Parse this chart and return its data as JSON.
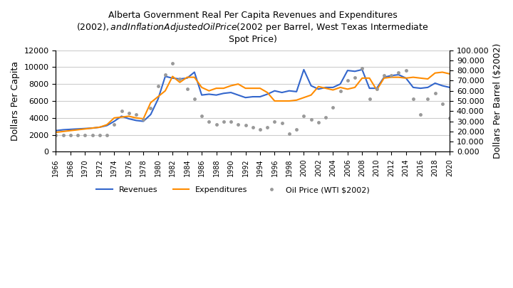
{
  "title": "Alberta Government Real Per Capita Revenues and Expenditures\n($2002), and Inflation Adjusted Oil Price ($2002 per Barrel, West Texas Intermediate\nSpot Price)",
  "ylabel_left": "Dollars Per Capita",
  "ylabel_right": "Dollars Per Barrel ($2002)",
  "years": [
    1966,
    1967,
    1968,
    1969,
    1970,
    1971,
    1972,
    1973,
    1974,
    1975,
    1976,
    1977,
    1978,
    1979,
    1980,
    1981,
    1982,
    1983,
    1984,
    1985,
    1986,
    1987,
    1988,
    1989,
    1990,
    1991,
    1992,
    1993,
    1994,
    1995,
    1996,
    1997,
    1998,
    1999,
    2000,
    2001,
    2002,
    2003,
    2004,
    2005,
    2006,
    2007,
    2008,
    2009,
    2010,
    2011,
    2012,
    2013,
    2014,
    2015,
    2016,
    2017,
    2018,
    2019,
    2020
  ],
  "revenues": [
    2500,
    2600,
    2650,
    2700,
    2750,
    2800,
    2900,
    3100,
    3600,
    4200,
    3900,
    3700,
    3600,
    4400,
    6200,
    8900,
    8700,
    8600,
    8700,
    9400,
    6700,
    6800,
    6700,
    6900,
    7000,
    6700,
    6400,
    6500,
    6500,
    6800,
    7200,
    7000,
    7200,
    7100,
    9700,
    7800,
    7400,
    7600,
    7600,
    8000,
    9600,
    9500,
    9700,
    7500,
    7500,
    8800,
    9000,
    9100,
    8700,
    7600,
    7500,
    7600,
    8100,
    7800,
    7600
  ],
  "expenditures": [
    2300,
    2400,
    2500,
    2600,
    2700,
    2800,
    2900,
    3200,
    4000,
    4100,
    4200,
    4000,
    3900,
    5800,
    6500,
    7200,
    8900,
    8200,
    8800,
    8800,
    7600,
    7200,
    7500,
    7500,
    7800,
    8000,
    7500,
    7500,
    7500,
    7000,
    6000,
    6000,
    6000,
    6100,
    6400,
    6700,
    7700,
    7500,
    7300,
    7600,
    7400,
    7600,
    8700,
    8700,
    7300,
    8700,
    8800,
    8800,
    8700,
    8800,
    8700,
    8600,
    9300,
    9400,
    9200
  ],
  "oil_price": [
    16.5,
    16.5,
    16.5,
    16.5,
    16.5,
    16.5,
    16.5,
    16.5,
    27.0,
    40.0,
    38.0,
    37.0,
    32.0,
    43.0,
    65.0,
    76.0,
    87.0,
    72.0,
    62.0,
    52.0,
    35.0,
    30.0,
    27.0,
    30.0,
    30.0,
    27.0,
    26.0,
    24.0,
    22.0,
    24.0,
    30.0,
    28.0,
    17.5,
    22.0,
    35.0,
    32.0,
    29.0,
    34.0,
    44.0,
    60.0,
    70.0,
    73.0,
    82.0,
    52.0,
    62.0,
    75.0,
    75.0,
    78.0,
    80.0,
    52.0,
    37.0,
    52.0,
    58.0,
    47.0,
    33.0
  ],
  "revenue_color": "#3366CC",
  "expenditure_color": "#FF8C00",
  "oil_color": "#999999",
  "left_ylim": [
    0,
    12000
  ],
  "right_ylim": [
    0,
    100
  ],
  "left_yticks": [
    0,
    2000,
    4000,
    6000,
    8000,
    10000,
    12000
  ],
  "right_yticks": [
    0.0,
    10.0,
    20.0,
    30.0,
    40.0,
    50.0,
    60.0,
    70.0,
    80.0,
    90.0,
    100.0
  ],
  "background_color": "#ffffff",
  "grid_color": "#cccccc"
}
